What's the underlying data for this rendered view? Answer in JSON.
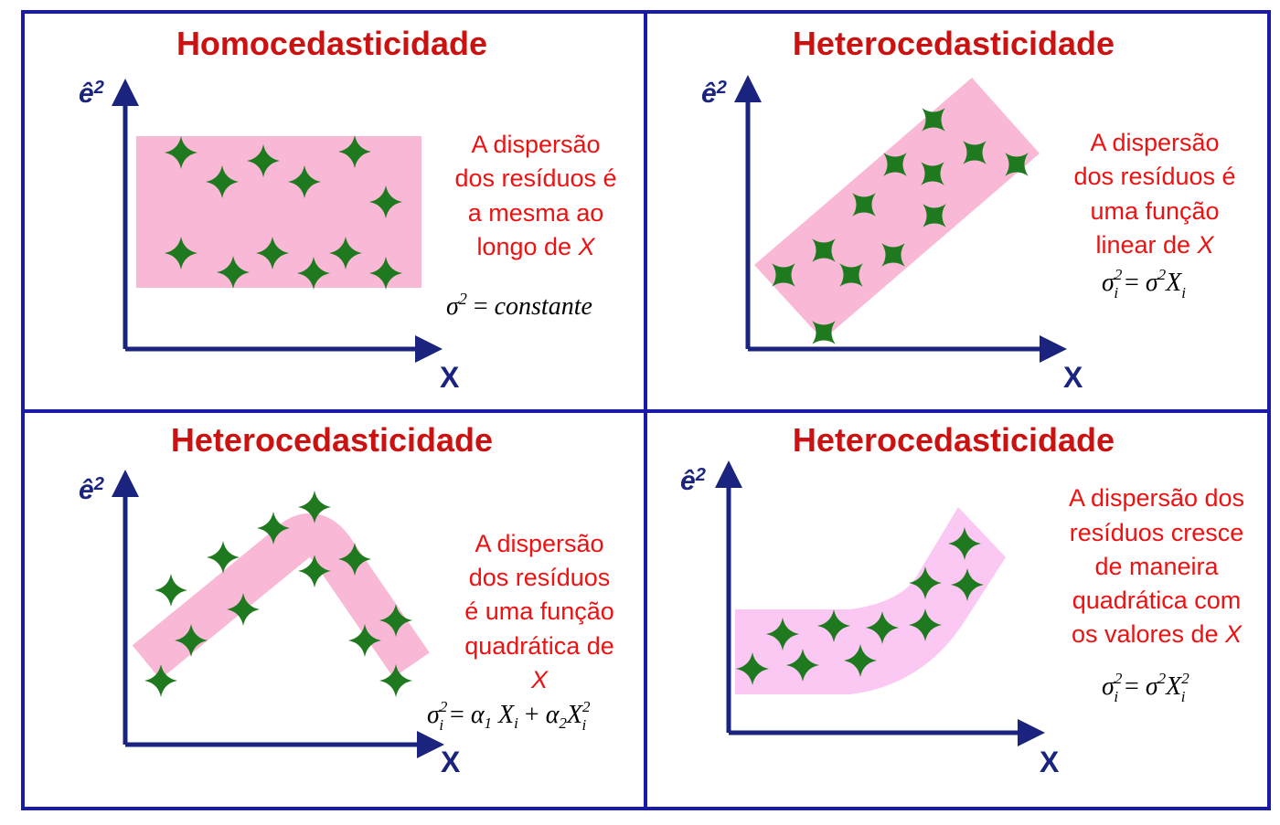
{
  "panels": [
    {
      "title": "Homocedasticidade",
      "y_axis_label": "ê2",
      "x_axis_label": "X",
      "description_lines": [
        "A dispersão",
        "dos resíduos é",
        "a mesma ao",
        "longo de X"
      ],
      "formula": "σ2 = constante"
    },
    {
      "title": "Heterocedasticidade",
      "y_axis_label": "ê2",
      "x_axis_label": "X",
      "description_lines": [
        "A dispersão",
        "dos resíduos é",
        "uma função",
        "linear de X"
      ],
      "formula": "σi2 = σ2Xi"
    },
    {
      "title": "Heterocedasticidade",
      "y_axis_label": "ê2",
      "x_axis_label": "X",
      "description_lines": [
        "A dispersão",
        "dos resíduos",
        "é uma função",
        "quadrática de",
        "X"
      ],
      "formula": "σi2 = α1 Xi + α2Xi2"
    },
    {
      "title": "Heterocedasticidade",
      "y_axis_label": "ê2",
      "x_axis_label": "X",
      "description_lines": [
        "A dispersão dos",
        "resíduos cresce",
        "de maneira",
        "quadrática com",
        "os valores de X"
      ],
      "formula": "σi2 = σ2Xi2"
    }
  ],
  "colors": {
    "frame": "#1a1aa8",
    "title": "#cc1111",
    "description": "#ee1111",
    "axis": "#1a237e",
    "band_pink": "#f9b8d6",
    "band_light": "#fbc8f3",
    "marker": "#1f7a1f"
  }
}
